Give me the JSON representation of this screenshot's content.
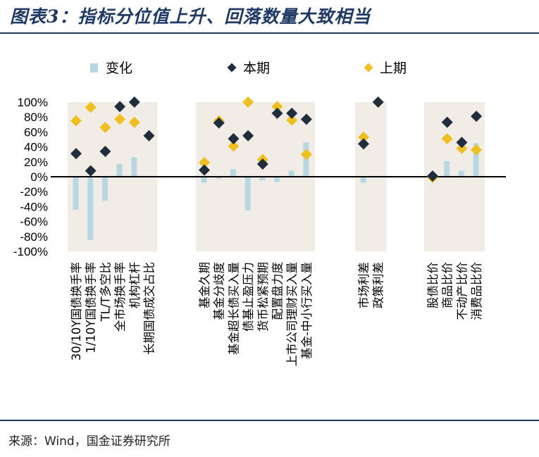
{
  "header": {
    "title": "图表3：指标分位值上升、回落数量大致相当"
  },
  "footer": {
    "source": "来源：Wind，国金证券研究所"
  },
  "colors": {
    "change": "#b7d7e2",
    "current": "#1f2d3d",
    "previous": "#f0c020",
    "panel": "#f2ece6",
    "axis": "#000000",
    "title": "#1f3864"
  },
  "chart_data": {
    "type": "scatter",
    "ylim": [
      -1,
      1
    ],
    "yticks": [
      "100%",
      "80%",
      "60%",
      "40%",
      "20%",
      "0%",
      "-20%",
      "-40%",
      "-60%",
      "-80%",
      "-100%"
    ],
    "legend": [
      "变化",
      "本期",
      "上期"
    ],
    "groups": [
      {
        "categories": [
          "30/10Y国债换手率",
          "1/10Y国债换手率",
          "TL/T多空比",
          "全市场换手率",
          "机构杠杆",
          "长期国债成交占比"
        ],
        "change": [
          -0.44,
          -0.85,
          -0.32,
          0.17,
          0.26,
          0
        ],
        "current": [
          0.31,
          0.08,
          0.34,
          0.94,
          1.0,
          0.55
        ],
        "previous": [
          0.75,
          0.93,
          0.66,
          0.77,
          0.73,
          0.55
        ]
      },
      {
        "categories": [
          "基金久期",
          "基金分歧度",
          "基金超长债买入量",
          "债基止盈压力",
          "货币松紧预期",
          "配置盘力度",
          "上市公司理财买入量",
          "基金-中小行买入量"
        ],
        "change": [
          -0.08,
          -0.03,
          0.1,
          -0.45,
          -0.05,
          -0.07,
          0.08,
          0.46
        ],
        "current": [
          0.09,
          0.72,
          0.51,
          0.55,
          0.17,
          0.85,
          0.85,
          0.77
        ],
        "previous": [
          0.19,
          0.75,
          0.41,
          1.0,
          0.23,
          0.94,
          0.76,
          0.3
        ]
      },
      {
        "categories": [
          "市场利差",
          "政策利差"
        ],
        "change": [
          -0.08,
          0
        ],
        "current": [
          0.44,
          1.0
        ],
        "previous": [
          0.53,
          1.0
        ]
      },
      {
        "categories": [
          "股债比价",
          "商品比价",
          "不动产比价",
          "消费品比价"
        ],
        "change": [
          0,
          0.21,
          0.08,
          0.45
        ],
        "current": [
          0.01,
          0.73,
          0.46,
          0.81
        ],
        "previous": [
          -0.01,
          0.51,
          0.38,
          0.36
        ]
      }
    ]
  }
}
